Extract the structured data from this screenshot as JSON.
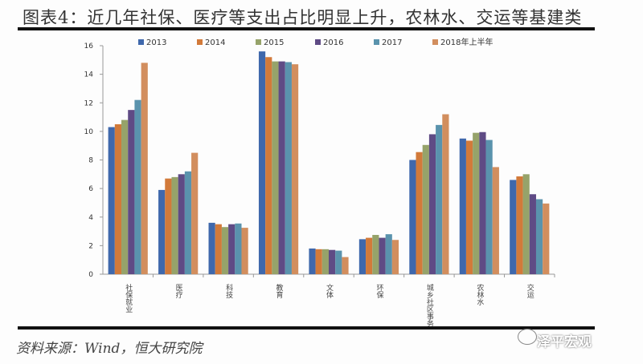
{
  "title": "图表4：近几年社保、医疗等支出占比明显上升，农林水、交运等基建类",
  "source": "资料来源：Wind，恒大研究院",
  "watermark": "泽平宏观",
  "chart_data": {
    "type": "bar",
    "title": "",
    "xlabel": "",
    "ylabel": "",
    "ylim": [
      0,
      16
    ],
    "yticks": [
      0,
      2,
      4,
      6,
      8,
      10,
      12,
      14,
      16
    ],
    "grid": false,
    "legend_position": "top",
    "categories": [
      "社保就业",
      "医疗",
      "科技",
      "教育",
      "文体",
      "环保",
      "城乡社区事务",
      "农林水",
      "交运"
    ],
    "series": [
      {
        "name": "2013",
        "color": "#3f68ac",
        "values": [
          10.3,
          5.9,
          3.6,
          15.6,
          1.8,
          2.45,
          8.0,
          9.5,
          6.6
        ]
      },
      {
        "name": "2014",
        "color": "#d27a3a",
        "values": [
          10.5,
          6.7,
          3.5,
          15.2,
          1.75,
          2.55,
          8.55,
          9.35,
          6.85
        ]
      },
      {
        "name": "2015",
        "color": "#96a36a",
        "values": [
          10.8,
          6.8,
          3.3,
          14.9,
          1.75,
          2.75,
          9.05,
          9.9,
          7.0
        ]
      },
      {
        "name": "2016",
        "color": "#5f4b85",
        "values": [
          11.5,
          7.0,
          3.5,
          14.9,
          1.7,
          2.55,
          9.8,
          9.95,
          5.6
        ]
      },
      {
        "name": "2017",
        "color": "#5a93ad",
        "values": [
          12.2,
          7.2,
          3.55,
          14.85,
          1.65,
          2.8,
          10.45,
          9.4,
          5.25
        ]
      },
      {
        "name": "2018年上半年",
        "color": "#d28e5e",
        "values": [
          14.8,
          8.5,
          3.25,
          14.7,
          1.2,
          2.4,
          11.2,
          7.5,
          4.95
        ]
      }
    ]
  }
}
